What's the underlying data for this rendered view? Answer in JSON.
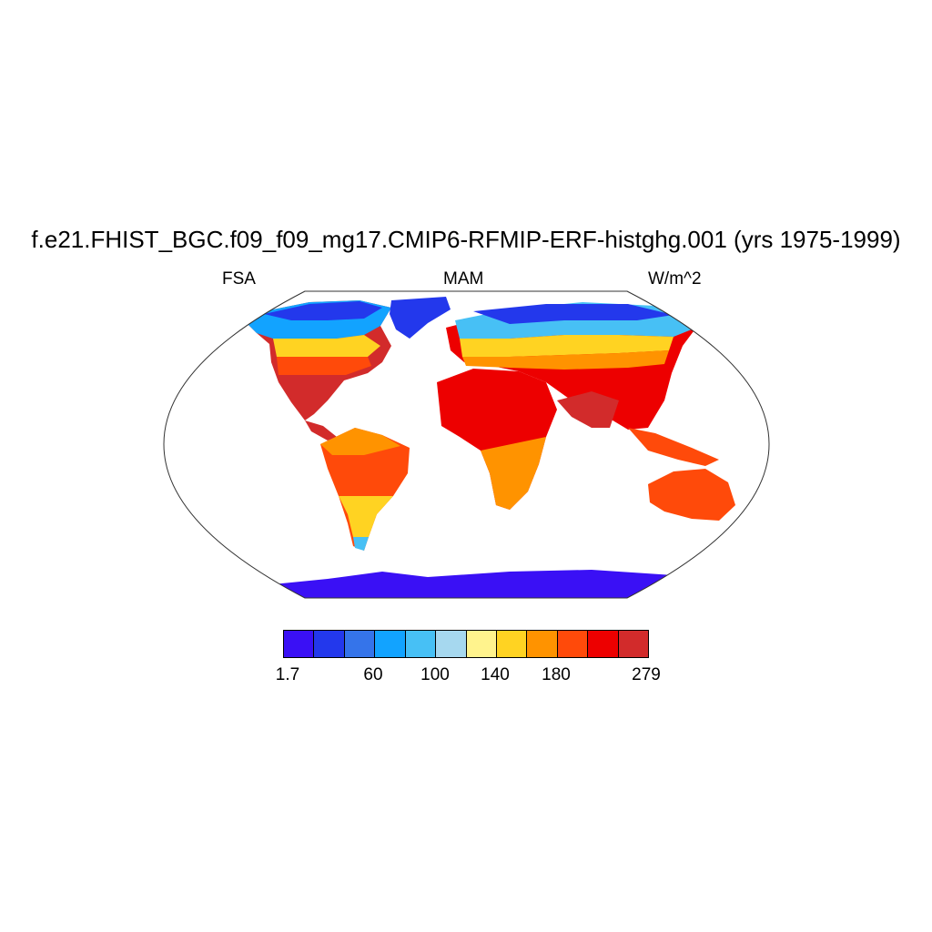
{
  "title": "f.e21.FHIST_BGC.f09_f09_mg17.CMIP6-RFMIP-ERF-histghg.001 (yrs 1975-1999)",
  "left_label": "FSA",
  "center_label": "MAM",
  "right_label": "W/m^2",
  "colorbar": {
    "colors": [
      "#3a10f5",
      "#2338ec",
      "#3574ea",
      "#12a3ff",
      "#47c0f5",
      "#a6d8ef",
      "#fff38d",
      "#ffd322",
      "#ff9300",
      "#ff4a0a",
      "#ed0000",
      "#d22b2b"
    ],
    "labels": [
      "1.7",
      "60",
      "100",
      "140",
      "180",
      "279"
    ]
  }
}
